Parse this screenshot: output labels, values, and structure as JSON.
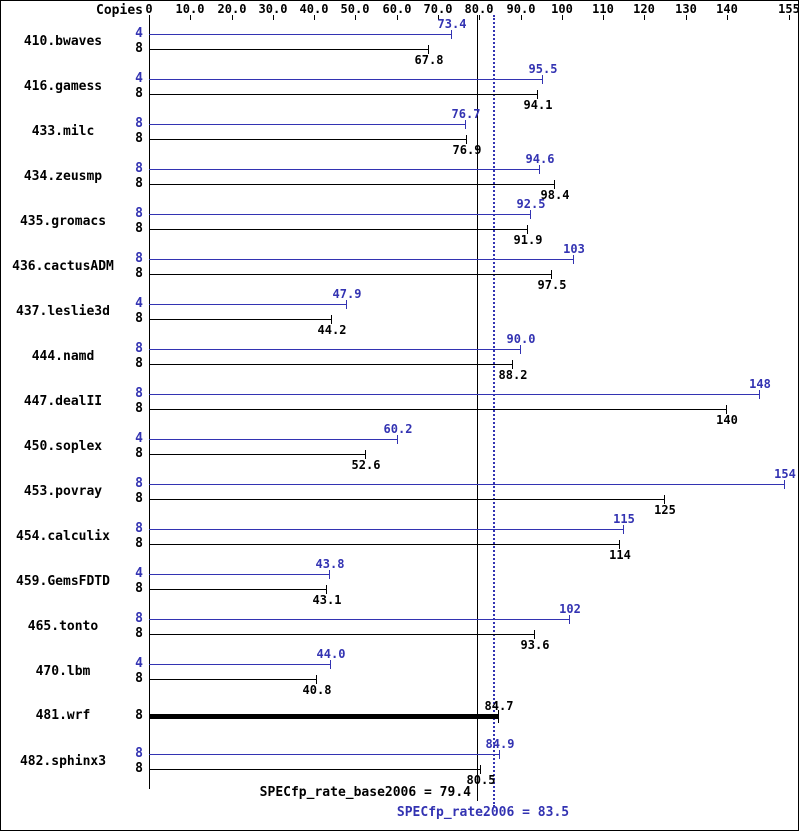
{
  "chart_data": {
    "type": "bar",
    "orientation": "horizontal",
    "copies_header": "Copies",
    "colors": {
      "peak": "#3333b2",
      "base": "#000000"
    },
    "axis": {
      "position": "top",
      "min": 0,
      "max": 155,
      "ticks": [
        {
          "v": 0,
          "label": "0"
        },
        {
          "v": 10,
          "label": "10.0"
        },
        {
          "v": 20,
          "label": "20.0"
        },
        {
          "v": 30,
          "label": "30.0"
        },
        {
          "v": 40,
          "label": "40.0"
        },
        {
          "v": 50,
          "label": "50.0"
        },
        {
          "v": 60,
          "label": "60.0"
        },
        {
          "v": 70,
          "label": "70.0"
        },
        {
          "v": 80,
          "label": "80.0"
        },
        {
          "v": 90,
          "label": "90.0"
        },
        {
          "v": 100,
          "label": "100"
        },
        {
          "v": 110,
          "label": "110"
        },
        {
          "v": 120,
          "label": "120"
        },
        {
          "v": 130,
          "label": "130"
        },
        {
          "v": 140,
          "label": "140"
        },
        {
          "v": 155,
          "label": "155"
        }
      ]
    },
    "reference_lines": [
      {
        "name": "SPECfp_rate_base2006",
        "value": 79.4,
        "style": "solid",
        "color": "#000000"
      },
      {
        "name": "SPECfp_rate2006",
        "value": 83.5,
        "style": "dotted",
        "color": "#3333b2"
      }
    ],
    "benchmarks": [
      {
        "name": "410.bwaves",
        "peak_copies": "4",
        "peak": 73.4,
        "peak_label": "73.4",
        "base_copies": "8",
        "base": 67.8,
        "base_label": "67.8"
      },
      {
        "name": "416.gamess",
        "peak_copies": "4",
        "peak": 95.5,
        "peak_label": "95.5",
        "base_copies": "8",
        "base": 94.1,
        "base_label": "94.1"
      },
      {
        "name": "433.milc",
        "peak_copies": "8",
        "peak": 76.7,
        "peak_label": "76.7",
        "base_copies": "8",
        "base": 76.9,
        "base_label": "76.9"
      },
      {
        "name": "434.zeusmp",
        "peak_copies": "8",
        "peak": 94.6,
        "peak_label": "94.6",
        "base_copies": "8",
        "base": 98.4,
        "base_label": "98.4"
      },
      {
        "name": "435.gromacs",
        "peak_copies": "8",
        "peak": 92.5,
        "peak_label": "92.5",
        "base_copies": "8",
        "base": 91.9,
        "base_label": "91.9"
      },
      {
        "name": "436.cactusADM",
        "peak_copies": "8",
        "peak": 103,
        "peak_label": "103",
        "base_copies": "8",
        "base": 97.5,
        "base_label": "97.5"
      },
      {
        "name": "437.leslie3d",
        "peak_copies": "4",
        "peak": 47.9,
        "peak_label": "47.9",
        "base_copies": "8",
        "base": 44.2,
        "base_label": "44.2"
      },
      {
        "name": "444.namd",
        "peak_copies": "8",
        "peak": 90.0,
        "peak_label": "90.0",
        "base_copies": "8",
        "base": 88.2,
        "base_label": "88.2"
      },
      {
        "name": "447.dealII",
        "peak_copies": "8",
        "peak": 148,
        "peak_label": "148",
        "base_copies": "8",
        "base": 140,
        "base_label": "140"
      },
      {
        "name": "450.soplex",
        "peak_copies": "4",
        "peak": 60.2,
        "peak_label": "60.2",
        "base_copies": "8",
        "base": 52.6,
        "base_label": "52.6"
      },
      {
        "name": "453.povray",
        "peak_copies": "8",
        "peak": 154,
        "peak_label": "154",
        "base_copies": "8",
        "base": 125,
        "base_label": "125"
      },
      {
        "name": "454.calculix",
        "peak_copies": "8",
        "peak": 115,
        "peak_label": "115",
        "base_copies": "8",
        "base": 114,
        "base_label": "114"
      },
      {
        "name": "459.GemsFDTD",
        "peak_copies": "4",
        "peak": 43.8,
        "peak_label": "43.8",
        "base_copies": "8",
        "base": 43.1,
        "base_label": "43.1"
      },
      {
        "name": "465.tonto",
        "peak_copies": "8",
        "peak": 102,
        "peak_label": "102",
        "base_copies": "8",
        "base": 93.6,
        "base_label": "93.6"
      },
      {
        "name": "470.lbm",
        "peak_copies": "4",
        "peak": 44.0,
        "peak_label": "44.0",
        "base_copies": "8",
        "base": 40.8,
        "base_label": "40.8"
      },
      {
        "name": "481.wrf",
        "single": true,
        "copies": "8",
        "value": 84.7,
        "label": "84.7"
      },
      {
        "name": "482.sphinx3",
        "peak_copies": "8",
        "peak": 84.9,
        "peak_label": "84.9",
        "base_copies": "8",
        "base": 80.5,
        "base_label": "80.5"
      }
    ],
    "footer": {
      "base_text": "SPECfp_rate_base2006 = 79.4",
      "peak_text": "SPECfp_rate2006 = 83.5"
    }
  }
}
